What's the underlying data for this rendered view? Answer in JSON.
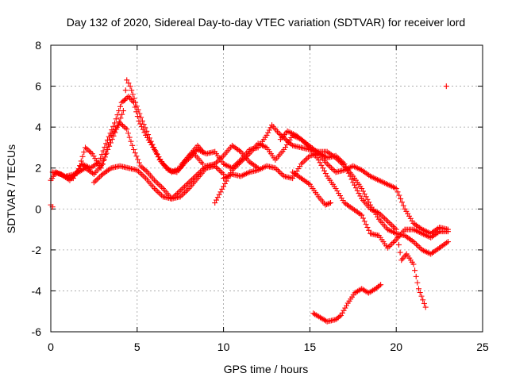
{
  "chart_data": {
    "type": "scatter",
    "title": "Day 132 of 2020, Sidereal Day-to-day VTEC variation (SDTVAR) for receiver lord",
    "xlabel": "GPS time / hours",
    "ylabel": "SDTVAR / TECUs",
    "xlim": [
      0,
      25
    ],
    "ylim": [
      -6,
      8
    ],
    "xticks": [
      0,
      5,
      10,
      15,
      20,
      25
    ],
    "yticks": [
      -6,
      -4,
      -2,
      0,
      2,
      4,
      6,
      8
    ],
    "xtick_labels": [
      "0",
      "5",
      "10",
      "15",
      "20",
      "25"
    ],
    "ytick_labels": [
      "-6",
      "-4",
      "-2",
      "0",
      "2",
      "4",
      "6",
      "8"
    ],
    "grid": true,
    "marker": "+",
    "color": "#ff0000",
    "series": [
      {
        "name": "track-1",
        "points": [
          [
            0.0,
            1.4
          ],
          [
            0.3,
            1.8
          ],
          [
            0.8,
            1.6
          ],
          [
            1.3,
            1.5
          ],
          [
            1.8,
            2.2
          ],
          [
            2.3,
            2.0
          ],
          [
            2.8,
            2.3
          ],
          [
            3.2,
            3.2
          ],
          [
            3.7,
            4.2
          ],
          [
            4.1,
            5.2
          ],
          [
            4.5,
            5.5
          ],
          [
            4.8,
            5.2
          ],
          [
            5.1,
            4.3
          ],
          [
            5.5,
            3.6
          ],
          [
            6.0,
            2.9
          ],
          [
            6.5,
            2.2
          ],
          [
            7.0,
            1.8
          ],
          [
            7.5,
            2.0
          ],
          [
            8.0,
            2.6
          ],
          [
            8.5,
            3.1
          ],
          [
            8.8,
            2.8
          ]
        ]
      },
      {
        "name": "track-2",
        "points": [
          [
            0.1,
            1.8
          ],
          [
            0.6,
            1.7
          ],
          [
            1.1,
            1.4
          ],
          [
            1.6,
            1.9
          ],
          [
            2.0,
            3.0
          ],
          [
            2.4,
            2.7
          ],
          [
            2.9,
            2.0
          ],
          [
            3.3,
            2.9
          ],
          [
            3.8,
            3.9
          ],
          [
            4.2,
            4.8
          ],
          [
            4.4,
            6.3
          ],
          [
            4.6,
            6.0
          ],
          [
            4.9,
            5.2
          ],
          [
            5.3,
            4.3
          ],
          [
            5.8,
            3.3
          ],
          [
            6.3,
            2.4
          ],
          [
            6.8,
            1.9
          ],
          [
            7.3,
            1.8
          ],
          [
            7.8,
            2.3
          ],
          [
            8.3,
            2.7
          ],
          [
            8.8,
            2.2
          ]
        ]
      },
      {
        "name": "track-3",
        "points": [
          [
            0.9,
            1.6
          ],
          [
            1.4,
            1.7
          ],
          [
            2.0,
            2.0
          ],
          [
            2.5,
            1.7
          ],
          [
            3.0,
            2.2
          ],
          [
            3.5,
            3.6
          ],
          [
            4.0,
            4.2
          ],
          [
            4.4,
            3.9
          ],
          [
            4.8,
            2.9
          ],
          [
            5.2,
            2.1
          ],
          [
            5.6,
            1.8
          ],
          [
            6.0,
            1.4
          ],
          [
            6.5,
            1.0
          ],
          [
            7.0,
            0.5
          ],
          [
            7.5,
            0.6
          ],
          [
            8.0,
            1.0
          ],
          [
            8.5,
            1.5
          ],
          [
            9.0,
            2.0
          ],
          [
            9.5,
            2.1
          ],
          [
            10.0,
            1.7
          ]
        ]
      },
      {
        "name": "track-4",
        "points": [
          [
            2.5,
            1.3
          ],
          [
            3.0,
            1.7
          ],
          [
            3.5,
            2.0
          ],
          [
            4.0,
            2.1
          ],
          [
            4.5,
            2.0
          ],
          [
            5.0,
            1.9
          ],
          [
            5.5,
            1.5
          ],
          [
            6.0,
            1.0
          ],
          [
            6.5,
            0.6
          ],
          [
            7.0,
            0.5
          ],
          [
            7.5,
            0.9
          ],
          [
            8.0,
            1.3
          ],
          [
            8.5,
            1.7
          ],
          [
            9.0,
            2.1
          ],
          [
            9.5,
            2.2
          ],
          [
            10.0,
            2.6
          ],
          [
            10.5,
            3.1
          ],
          [
            11.0,
            2.8
          ],
          [
            11.5,
            2.3
          ],
          [
            12.0,
            2.0
          ]
        ]
      },
      {
        "name": "track-5",
        "points": [
          [
            7.5,
            2.1
          ],
          [
            8.0,
            2.6
          ],
          [
            8.5,
            2.9
          ],
          [
            9.0,
            2.7
          ],
          [
            9.5,
            2.8
          ],
          [
            10.0,
            2.2
          ],
          [
            10.5,
            2.0
          ],
          [
            11.0,
            2.4
          ],
          [
            11.5,
            2.9
          ],
          [
            12.0,
            3.0
          ],
          [
            12.5,
            3.6
          ],
          [
            12.8,
            4.1
          ],
          [
            13.2,
            3.7
          ],
          [
            13.6,
            3.4
          ],
          [
            14.0,
            3.1
          ],
          [
            14.5,
            3.0
          ],
          [
            15.0,
            2.9
          ],
          [
            15.5,
            2.8
          ],
          [
            16.0,
            2.8
          ],
          [
            16.5,
            2.5
          ],
          [
            17.0,
            2.1
          ],
          [
            17.5,
            1.6
          ],
          [
            18.0,
            1.0
          ],
          [
            18.5,
            0.2
          ],
          [
            19.0,
            -0.5
          ],
          [
            19.5,
            -1.0
          ],
          [
            20.0,
            -1.2
          ],
          [
            20.5,
            -1.3
          ],
          [
            21.0,
            -1.6
          ],
          [
            21.5,
            -2.0
          ],
          [
            22.0,
            -2.2
          ],
          [
            22.5,
            -1.9
          ],
          [
            23.0,
            -1.6
          ]
        ]
      },
      {
        "name": "track-6",
        "points": [
          [
            9.5,
            0.3
          ],
          [
            10.0,
            1.1
          ],
          [
            10.5,
            1.9
          ],
          [
            11.0,
            2.3
          ],
          [
            11.5,
            2.7
          ],
          [
            12.0,
            3.2
          ],
          [
            12.5,
            3.0
          ],
          [
            13.0,
            2.4
          ],
          [
            13.5,
            2.9
          ],
          [
            14.0,
            3.6
          ],
          [
            14.5,
            3.4
          ],
          [
            15.0,
            3.0
          ],
          [
            15.5,
            2.4
          ],
          [
            16.0,
            1.6
          ],
          [
            16.5,
            1.0
          ],
          [
            17.0,
            0.3
          ],
          [
            17.5,
            0.0
          ],
          [
            18.0,
            -0.3
          ],
          [
            18.5,
            -1.2
          ],
          [
            19.0,
            -1.3
          ],
          [
            19.5,
            -1.9
          ],
          [
            20.0,
            -1.5
          ],
          [
            20.5,
            -1.0
          ],
          [
            21.0,
            -1.0
          ],
          [
            21.5,
            -1.2
          ],
          [
            22.0,
            -1.4
          ],
          [
            22.5,
            -1.1
          ],
          [
            23.0,
            -1.1
          ]
        ]
      },
      {
        "name": "track-7",
        "points": [
          [
            10.0,
            1.5
          ],
          [
            10.5,
            1.7
          ],
          [
            11.0,
            1.6
          ],
          [
            11.5,
            1.8
          ],
          [
            12.0,
            1.9
          ],
          [
            12.5,
            2.1
          ],
          [
            13.0,
            2.0
          ],
          [
            13.5,
            1.6
          ],
          [
            14.0,
            1.5
          ],
          [
            14.5,
            2.2
          ],
          [
            15.0,
            2.6
          ],
          [
            15.5,
            2.7
          ],
          [
            16.0,
            2.2
          ],
          [
            16.5,
            1.8
          ],
          [
            17.0,
            1.9
          ],
          [
            17.5,
            2.1
          ],
          [
            18.0,
            1.9
          ],
          [
            18.5,
            1.6
          ],
          [
            19.0,
            1.4
          ],
          [
            19.5,
            1.2
          ],
          [
            20.0,
            1.0
          ],
          [
            20.5,
            0.0
          ],
          [
            21.0,
            -0.7
          ],
          [
            21.5,
            -1.0
          ],
          [
            22.0,
            -1.2
          ],
          [
            22.5,
            -0.9
          ],
          [
            23.0,
            -1.0
          ]
        ]
      },
      {
        "name": "track-8",
        "points": [
          [
            13.3,
            3.4
          ],
          [
            13.7,
            3.8
          ],
          [
            14.2,
            3.6
          ],
          [
            14.8,
            3.2
          ],
          [
            15.4,
            2.8
          ],
          [
            16.0,
            2.5
          ],
          [
            16.5,
            2.6
          ],
          [
            17.0,
            2.2
          ],
          [
            17.5,
            1.3
          ],
          [
            18.0,
            0.5
          ],
          [
            18.5,
            0.0
          ],
          [
            19.0,
            -0.2
          ],
          [
            19.5,
            -0.6
          ],
          [
            20.0,
            -1.0
          ],
          [
            20.3,
            -2.5
          ],
          [
            20.6,
            -2.2
          ],
          [
            21.0,
            -2.7
          ],
          [
            21.3,
            -3.9
          ],
          [
            21.7,
            -4.8
          ]
        ]
      },
      {
        "name": "track-9",
        "points": [
          [
            14.0,
            1.8
          ],
          [
            14.5,
            1.5
          ],
          [
            15.0,
            1.2
          ],
          [
            15.5,
            0.6
          ],
          [
            15.9,
            0.2
          ],
          [
            16.2,
            0.3
          ]
        ]
      },
      {
        "name": "track-10",
        "points": [
          [
            15.2,
            -5.1
          ],
          [
            15.6,
            -5.3
          ],
          [
            16.0,
            -5.5
          ],
          [
            16.5,
            -5.4
          ],
          [
            16.8,
            -5.2
          ],
          [
            17.2,
            -4.6
          ],
          [
            17.6,
            -4.1
          ],
          [
            18.0,
            -3.9
          ],
          [
            18.4,
            -4.1
          ],
          [
            18.8,
            -3.9
          ],
          [
            19.1,
            -3.7
          ]
        ]
      },
      {
        "name": "track-11",
        "points": [
          [
            0.0,
            0.2
          ],
          [
            0.1,
            0.1
          ],
          [
            22.9,
            6.0
          ]
        ]
      }
    ]
  }
}
